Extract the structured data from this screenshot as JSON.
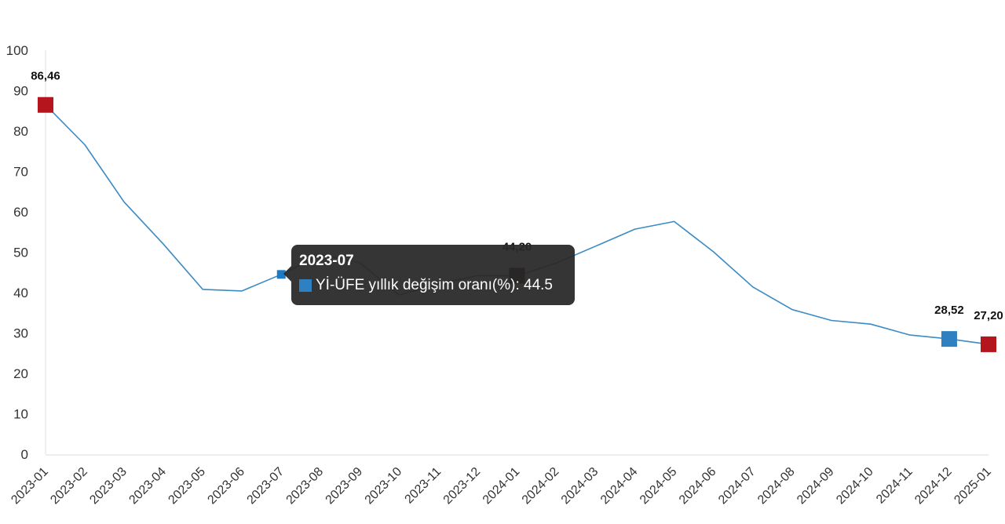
{
  "chart_data": {
    "type": "line",
    "categories": [
      "2023-01",
      "2023-02",
      "2023-03",
      "2023-04",
      "2023-05",
      "2023-06",
      "2023-07",
      "2023-08",
      "2023-09",
      "2023-10",
      "2023-11",
      "2023-12",
      "2024-01",
      "2024-02",
      "2024-03",
      "2024-04",
      "2024-05",
      "2024-06",
      "2024-07",
      "2024-08",
      "2024-09",
      "2024-10",
      "2024-11",
      "2024-12",
      "2025-01"
    ],
    "series": [
      {
        "name": "Yİ-ÜFE yıllık değişim oranı(%)",
        "values": [
          86.46,
          76.6,
          62.4,
          52.0,
          40.8,
          40.4,
          44.5,
          49.4,
          47.4,
          39.4,
          42.2,
          44.2,
          44.2,
          47.3,
          51.5,
          55.7,
          57.6,
          50.1,
          41.4,
          35.8,
          33.1,
          32.2,
          29.5,
          28.52,
          27.2
        ],
        "color": "#3a8ac4"
      }
    ],
    "ylim": [
      0,
      100
    ],
    "yticks": [
      "0",
      "10",
      "20",
      "30",
      "40",
      "50",
      "60",
      "70",
      "80",
      "90",
      "100"
    ],
    "grid": false,
    "legend": "none",
    "markers": [
      {
        "index": 0,
        "label": "86,46",
        "color": "#b5161e"
      },
      {
        "index": 6,
        "label": "",
        "color": "#1f7ac4"
      },
      {
        "index": 12,
        "label": "44,20",
        "color": "#3a0606"
      },
      {
        "index": 23,
        "label": "28,52",
        "color": "#2f80c0"
      },
      {
        "index": 24,
        "label": "27,20",
        "color": "#b5161e"
      }
    ],
    "tooltip": {
      "title": "2023-07",
      "series_name": "Yİ-ÜFE yıllık değişim oranı(%)",
      "value": "44.5",
      "swatch_color": "#2f80c0"
    }
  }
}
